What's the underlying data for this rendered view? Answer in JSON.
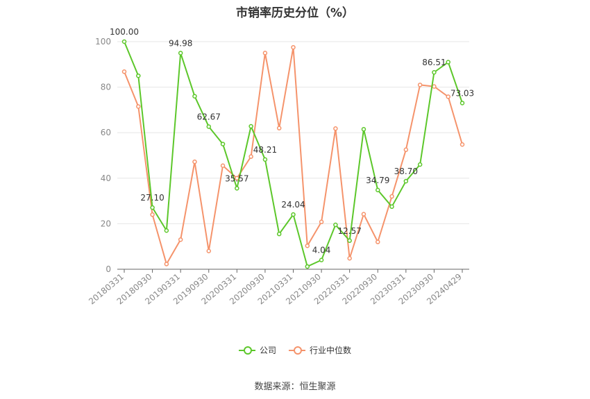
{
  "chart_data": {
    "type": "line",
    "title": "市销率历史分位（%）",
    "xlabel": "",
    "ylabel": "",
    "ylim": [
      0,
      100
    ],
    "yticks": [
      0,
      20,
      40,
      60,
      80,
      100
    ],
    "x": [
      "20180331",
      "20180630",
      "20180930",
      "20181231",
      "20190331",
      "20190630",
      "20190930",
      "20191231",
      "20200331",
      "20200630",
      "20200930",
      "20201231",
      "20210331",
      "20210630",
      "20210930",
      "20211231",
      "20220331",
      "20220630",
      "20220930",
      "20221231",
      "20230331",
      "20230630",
      "20230930",
      "20231231",
      "20240429"
    ],
    "xtick_labels": [
      "20180331",
      "20180930",
      "20190331",
      "20190930",
      "20200331",
      "20200930",
      "20210331",
      "20210930",
      "20220331",
      "20220930",
      "20230331",
      "20230930",
      "20240429"
    ],
    "series": [
      {
        "name": "公司",
        "color": "#5cc72a",
        "values": [
          100.0,
          85.0,
          27.1,
          17.0,
          94.98,
          76.0,
          62.67,
          55.0,
          35.57,
          62.8,
          48.21,
          15.5,
          24.04,
          1.2,
          4.04,
          19.5,
          12.57,
          61.5,
          34.79,
          27.5,
          38.7,
          46.0,
          86.51,
          91.0,
          73.03
        ],
        "labels": {
          "0": "100.00",
          "2": "27.10",
          "4": "94.98",
          "6": "62.67",
          "8": "35.57",
          "10": "48.21",
          "12": "24.04",
          "14": "4.04",
          "16": "12.57",
          "18": "34.79",
          "20": "38.70",
          "22": "86.51",
          "24": "73.03"
        }
      },
      {
        "name": "行业中位数",
        "color": "#f5936b",
        "values": [
          86.8,
          71.5,
          24.0,
          2.3,
          13.0,
          47.2,
          8.0,
          45.5,
          40.0,
          49.5,
          95.0,
          62.0,
          97.5,
          10.3,
          20.8,
          61.8,
          4.8,
          24.2,
          12.0,
          32.0,
          52.5,
          81.0,
          80.3,
          75.8,
          54.8
        ]
      }
    ],
    "grid": true,
    "legend_position": "bottom"
  },
  "source_text": "数据来源：恒生聚源"
}
